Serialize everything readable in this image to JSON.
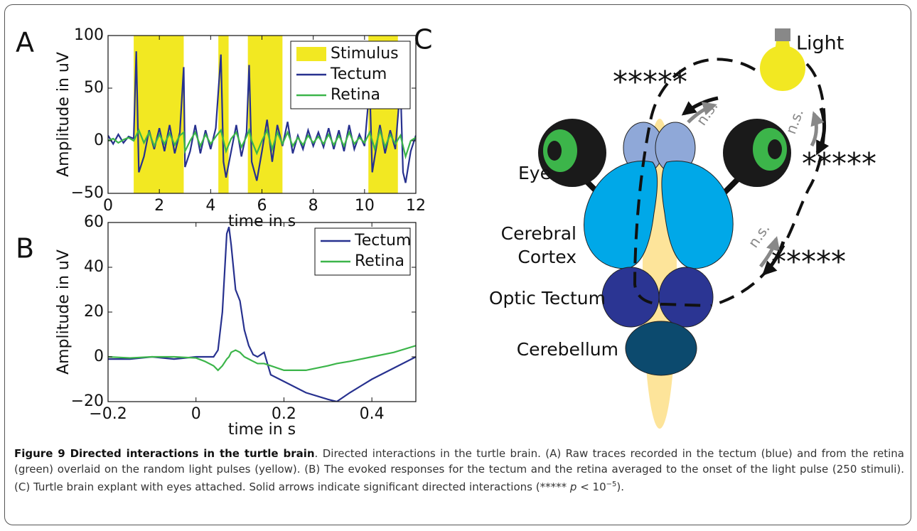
{
  "chart_data": [
    {
      "type": "line",
      "panel": "A",
      "xlabel": "time in s",
      "ylabel": "Amplitude in uV",
      "xlim": [
        0,
        12
      ],
      "xticks": [
        0,
        2,
        4,
        6,
        8,
        10,
        12
      ],
      "ylim": [
        -50,
        100
      ],
      "yticks": [
        {
          "value": -50,
          "label": "−50"
        },
        0,
        50,
        100
      ],
      "legend": "upper right",
      "x": [
        0,
        0.2,
        0.4,
        0.6,
        0.8,
        1.0,
        1.1,
        1.2,
        1.4,
        1.6,
        1.8,
        2.0,
        2.2,
        2.4,
        2.6,
        2.8,
        2.95,
        3.0,
        3.2,
        3.4,
        3.6,
        3.8,
        4.0,
        4.2,
        4.4,
        4.5,
        4.6,
        4.8,
        5.0,
        5.2,
        5.4,
        5.5,
        5.6,
        5.8,
        6.0,
        6.2,
        6.4,
        6.6,
        6.8,
        7.0,
        7.2,
        7.4,
        7.6,
        7.8,
        8.0,
        8.2,
        8.4,
        8.6,
        8.8,
        9.0,
        9.2,
        9.4,
        9.6,
        9.8,
        10.0,
        10.2,
        10.3,
        10.4,
        10.6,
        10.8,
        11.0,
        11.2,
        11.4,
        11.5,
        11.6,
        11.8,
        12.0
      ],
      "series": [
        {
          "name": "Stimulus",
          "color": "#f2e822",
          "spans": [
            [
              1.0,
              2.95
            ],
            [
              4.3,
              4.7
            ],
            [
              5.45,
              6.8
            ],
            [
              10.15,
              11.3
            ]
          ]
        },
        {
          "name": "Tectum",
          "color": "#27318f",
          "values": [
            5,
            -3,
            6,
            -2,
            4,
            2,
            85,
            -30,
            -15,
            10,
            -8,
            12,
            -10,
            15,
            -12,
            8,
            70,
            -25,
            -10,
            15,
            -12,
            10,
            -8,
            12,
            82,
            -20,
            -35,
            -10,
            15,
            -15,
            8,
            72,
            -20,
            -38,
            -10,
            20,
            -20,
            15,
            -5,
            18,
            -12,
            5,
            -8,
            10,
            -5,
            8,
            -6,
            12,
            -8,
            10,
            -10,
            15,
            -8,
            6,
            -5,
            52,
            -30,
            -15,
            15,
            -12,
            10,
            -8,
            53,
            -30,
            -40,
            -10,
            5
          ]
        },
        {
          "name": "Retina",
          "color": "#3cb54a",
          "values": [
            0,
            2,
            -2,
            1,
            3,
            0,
            5,
            10,
            -2,
            8,
            -5,
            6,
            -3,
            7,
            -4,
            5,
            8,
            -10,
            0,
            8,
            -5,
            6,
            -3,
            4,
            10,
            0,
            -10,
            2,
            8,
            -6,
            4,
            10,
            0,
            -12,
            0,
            10,
            -8,
            8,
            -3,
            8,
            -5,
            3,
            -4,
            5,
            -2,
            4,
            -3,
            6,
            -4,
            5,
            -5,
            8,
            -3,
            3,
            -2,
            8,
            0,
            -8,
            10,
            -6,
            6,
            -3,
            5,
            -5,
            -15,
            0,
            3
          ]
        }
      ]
    },
    {
      "type": "line",
      "panel": "B",
      "xlabel": "time in s",
      "ylabel": "Amplitude in uV",
      "xlim": [
        -0.2,
        0.5
      ],
      "xticks": [
        {
          "value": -0.2,
          "label": "−0.2"
        },
        0,
        0.2,
        0.4
      ],
      "ylim": [
        -20,
        60
      ],
      "yticks": [
        {
          "value": -20,
          "label": "−20"
        },
        0,
        20,
        40,
        60
      ],
      "legend": "upper right",
      "x": [
        -0.2,
        -0.15,
        -0.1,
        -0.05,
        0,
        0.02,
        0.04,
        0.05,
        0.06,
        0.07,
        0.075,
        0.08,
        0.09,
        0.1,
        0.11,
        0.12,
        0.13,
        0.14,
        0.155,
        0.17,
        0.2,
        0.25,
        0.3,
        0.32,
        0.35,
        0.4,
        0.45,
        0.5
      ],
      "series": [
        {
          "name": "Tectum",
          "color": "#27318f",
          "values": [
            -1,
            -1,
            0,
            -1,
            0,
            0,
            0,
            3,
            20,
            55,
            58,
            50,
            30,
            25,
            12,
            5,
            1,
            0,
            2,
            -8,
            -11,
            -16,
            -19,
            -20,
            -16,
            -10,
            -5,
            0
          ]
        },
        {
          "name": "Retina",
          "color": "#3cb54a",
          "values": [
            0,
            -0.5,
            0,
            0,
            -0.5,
            -2,
            -4,
            -6,
            -4,
            -1,
            0,
            2,
            3,
            2,
            0,
            -1,
            -2,
            -3,
            -3,
            -4,
            -6,
            -6,
            -4,
            -3,
            -2,
            0,
            2,
            5
          ]
        }
      ]
    }
  ],
  "diagram": {
    "panel": "C",
    "light": "Light",
    "eye": "Eye",
    "cortex": [
      "Cerebral",
      "Cortex"
    ],
    "tectum": "Optic Tectum",
    "cerebellum": "Cerebellum",
    "significance": [
      "*****",
      "*****",
      "*****"
    ],
    "not_significant": [
      "n.s.",
      "n.s.",
      "n.s."
    ]
  },
  "caption": {
    "title": "Figure 9 Directed interactions in the turtle brain",
    "body": ". Directed interactions in the turtle brain. (A) Raw traces recorded in the tectum (blue) and from the retina (green) overlaid on the random light pulses (yellow). (B) The evoked responses for the tectum and the retina averaged to the onset of the light pulse (250 stimuli). (C) Turtle brain explant with eyes attached. Solid arrows indicate significant directed interactions (*****",
    "p": "p",
    "lt": "<",
    "base": "10",
    "exponent": "−5",
    "end": ")."
  }
}
